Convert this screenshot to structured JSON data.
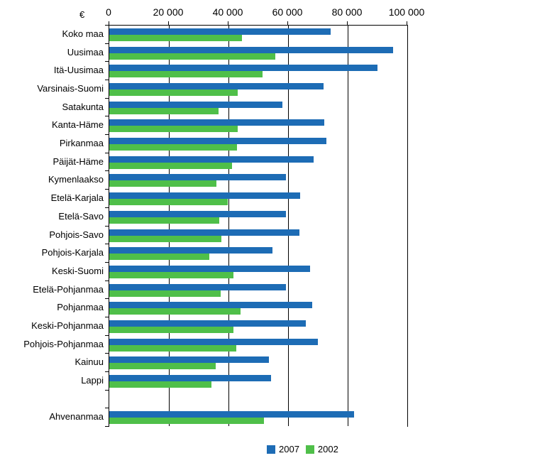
{
  "axis": {
    "unit": "€",
    "tick_labels": [
      "0",
      "20 000",
      "40 000",
      "60 000",
      "80 000",
      "100 000"
    ],
    "tick_values": [
      0,
      20000,
      40000,
      60000,
      80000,
      100000
    ]
  },
  "legend": {
    "items": [
      {
        "label": "2007",
        "color": "#1d6cb5"
      },
      {
        "label": "2002",
        "color": "#4fbf49"
      }
    ]
  },
  "chart_data": {
    "type": "bar",
    "orientation": "horizontal",
    "title": "",
    "xlabel": "€",
    "xlim": [
      0,
      100000
    ],
    "gridlines": "vertical",
    "legend_position": "bottom",
    "gap_after_index": 19,
    "categories": [
      "Koko maa",
      "Uusimaa",
      "Itä-Uusimaa",
      "Varsinais-Suomi",
      "Satakunta",
      "Kanta-Häme",
      "Pirkanmaa",
      "Päijät-Häme",
      "Kymenlaakso",
      "Etelä-Karjala",
      "Etelä-Savo",
      "Pohjois-Savo",
      "Pohjois-Karjala",
      "Keski-Suomi",
      "Etelä-Pohjanmaa",
      "Pohjanmaa",
      "Keski-Pohjanmaa",
      "Pohjois-Pohjanmaa",
      "Kainuu",
      "Lappi",
      "Ahvenanmaa"
    ],
    "series": [
      {
        "name": "2007",
        "color": "#1d6cb5",
        "values": [
          74300,
          95200,
          90000,
          71900,
          58000,
          72100,
          72900,
          68500,
          59400,
          64000,
          59200,
          63700,
          54800,
          67400,
          59400,
          68100,
          66000,
          70100,
          53500,
          54300,
          82200
        ]
      },
      {
        "name": "2002",
        "color": "#4fbf49",
        "values": [
          44500,
          55600,
          51400,
          43100,
          36600,
          43100,
          42800,
          41100,
          36000,
          39800,
          37000,
          37500,
          33600,
          41700,
          37400,
          44100,
          41600,
          42500,
          35800,
          34400,
          51900
        ]
      }
    ]
  }
}
